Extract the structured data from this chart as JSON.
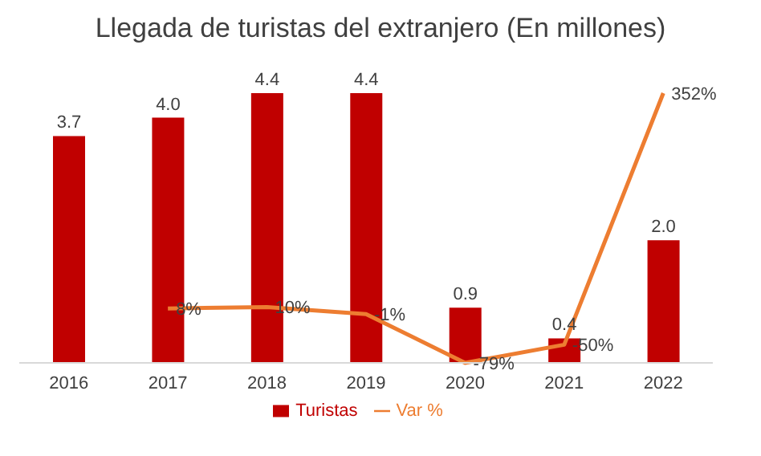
{
  "chart_data": {
    "type": "bar",
    "title": "Llegada de turistas del extranjero (En millones)",
    "categories": [
      "2016",
      "2017",
      "2018",
      "2019",
      "2020",
      "2021",
      "2022"
    ],
    "legend": "bottom",
    "grid": false,
    "series": [
      {
        "name": "Turistas",
        "color": "#c00000",
        "values": [
          3.7,
          4.0,
          4.4,
          4.4,
          0.9,
          0.4,
          2.0
        ],
        "value_labels": [
          "3.7",
          "4.0",
          "4.4",
          "4.4",
          "0.9",
          "0.4",
          "2.0"
        ]
      },
      {
        "name": "Var %",
        "type": "line",
        "axis": "y2",
        "color": "#ed7d31",
        "marker": "none",
        "values": [
          null,
          8,
          10,
          -1,
          -79,
          -50,
          352
        ],
        "value_labels": [
          null,
          "8%",
          "10%",
          "-1%",
          "-79%",
          "-50%",
          "352%"
        ]
      }
    ]
  }
}
